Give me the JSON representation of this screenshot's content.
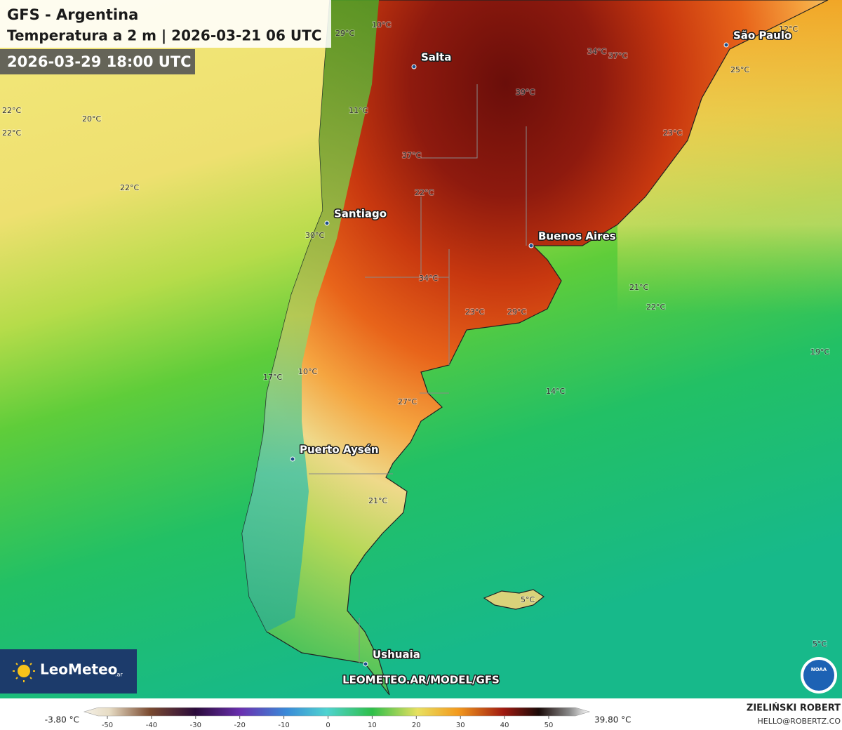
{
  "header": {
    "title": "GFS - Argentina",
    "subtitle": "Temperatura a 2 m | 2026-03-21 06 UTC",
    "valid_time": "2026-03-29 18:00 UTC"
  },
  "cities": [
    "Salta",
    "São Paulo",
    "Santiago",
    "Buenos Aires",
    "Puerto Aysén",
    "Ushuaia"
  ],
  "temperature_labels": [
    "29°C",
    "10°C",
    "11°C",
    "22°C",
    "22°C",
    "20°C",
    "22°C",
    "37°C",
    "22°C",
    "30°C",
    "34°C",
    "23°C",
    "29°C",
    "39°C",
    "34°C",
    "37°C",
    "23°C",
    "25°C",
    "12°C",
    "21°C",
    "22°C",
    "19°C",
    "14°C",
    "10°C",
    "17°C",
    "27°C",
    "21°C",
    "5°C",
    "5°C"
  ],
  "branding": {
    "logo": "LeoMeteo",
    "logo_suffix": ".ar",
    "url": "LEOMETEO.AR/MODEL/GFS",
    "agency": "NOAA",
    "author": "ZIELIŃSKI ROBERT",
    "email": "HELLO@ROBERTZ.CO"
  },
  "colorbar": {
    "min_label": "-3.80 °C",
    "max_label": "39.80 °C",
    "ticks": [
      -50,
      -40,
      -30,
      -20,
      -10,
      0,
      10,
      20,
      30,
      40,
      50
    ]
  }
}
